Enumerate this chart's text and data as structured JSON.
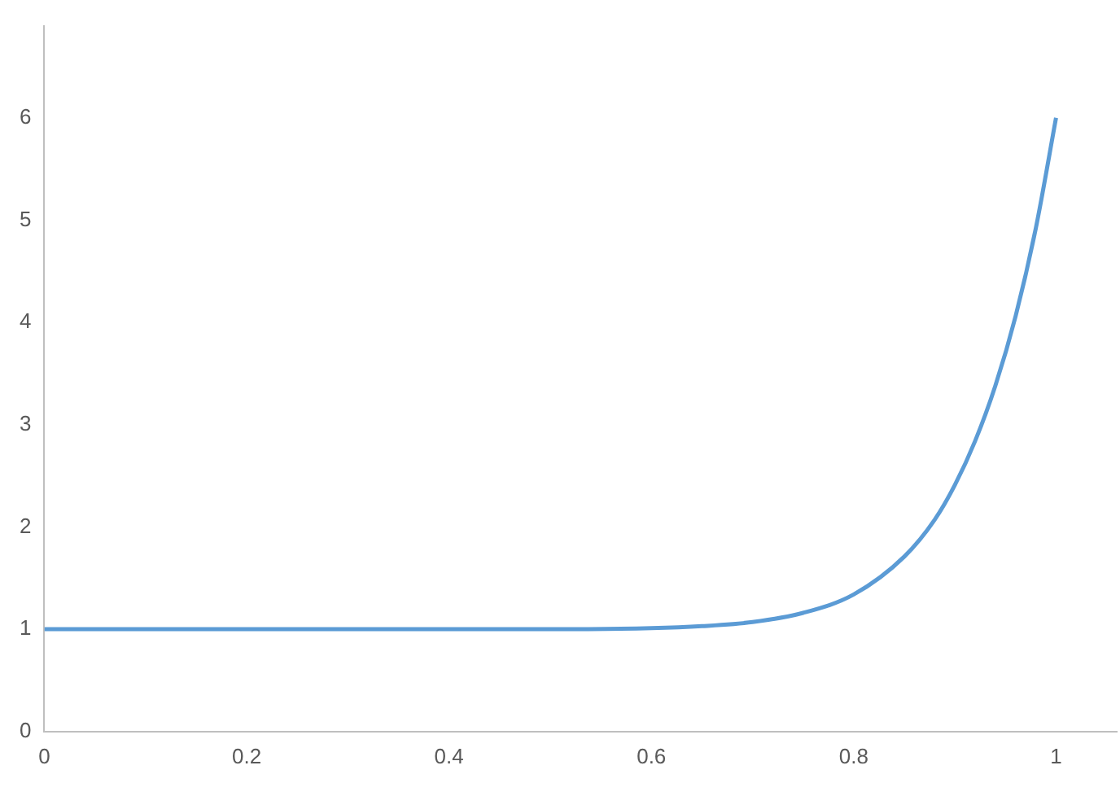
{
  "chart_data": {
    "type": "line",
    "x": [
      0,
      0.1,
      0.2,
      0.3,
      0.4,
      0.5,
      0.6,
      0.65,
      0.7,
      0.75,
      0.8,
      0.85,
      0.88,
      0.9,
      0.92,
      0.94,
      0.96,
      0.98,
      1
    ],
    "series": [
      {
        "color": "#5b9bd5",
        "values": [
          1,
          1,
          1,
          1,
          1,
          1,
          1.01,
          1.03,
          1.07,
          1.16,
          1.34,
          1.71,
          2.07,
          2.41,
          2.84,
          3.38,
          4.06,
          4.92,
          6
        ]
      }
    ],
    "xlim": [
      0,
      1.06
    ],
    "xticks": [
      0,
      0.2,
      0.4,
      0.6,
      0.8,
      1
    ],
    "ylim": [
      0,
      6.9
    ],
    "yticks": [
      0,
      1,
      2,
      3,
      4,
      5,
      6
    ],
    "grid": false,
    "legend": false,
    "marker": "none",
    "line_style": "solid"
  }
}
